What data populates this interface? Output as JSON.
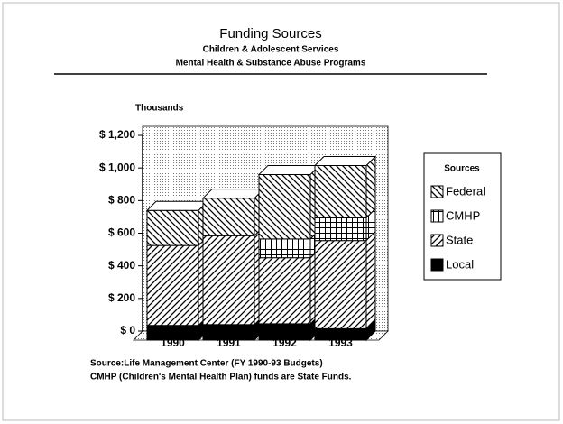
{
  "chart_data": {
    "type": "bar3d_stacked",
    "title": "Funding Sources",
    "subtitle": [
      "Children & Adolescent Services",
      "Mental Health & Substance Abuse Programs"
    ],
    "y_axis_label": "Thousands",
    "categories": [
      "1990",
      "1991",
      "1992",
      "1993"
    ],
    "series": [
      {
        "name": "Local",
        "color": "#000000",
        "pattern": "solid",
        "values": [
          90,
          95,
          100,
          70
        ]
      },
      {
        "name": "State",
        "color": "#000000",
        "pattern": "forward-hatch",
        "values": [
          490,
          545,
          405,
          540
        ]
      },
      {
        "name": "CMHP",
        "color": "#000000",
        "pattern": "grid",
        "values": [
          0,
          0,
          115,
          140
        ]
      },
      {
        "name": "Federal",
        "color": "#000000",
        "pattern": "back-hatch",
        "values": [
          215,
          230,
          395,
          320
        ]
      }
    ],
    "ylim": [
      0,
      1200
    ],
    "yticks": [
      {
        "value": 0,
        "label": "$ 0"
      },
      {
        "value": 200,
        "label": "$ 200"
      },
      {
        "value": 400,
        "label": "$ 400"
      },
      {
        "value": 600,
        "label": "$ 600"
      },
      {
        "value": 800,
        "label": "$ 800"
      },
      {
        "value": 1000,
        "label": "$ 1,000"
      },
      {
        "value": 1200,
        "label": "$ 1,200"
      }
    ],
    "legend_title": "Sources",
    "legend_position": "right",
    "notes": [
      "Source:Life Management Center (FY 1990-93 Budgets)",
      "CMHP (Children's Mental Health Plan) funds are State Funds."
    ]
  }
}
